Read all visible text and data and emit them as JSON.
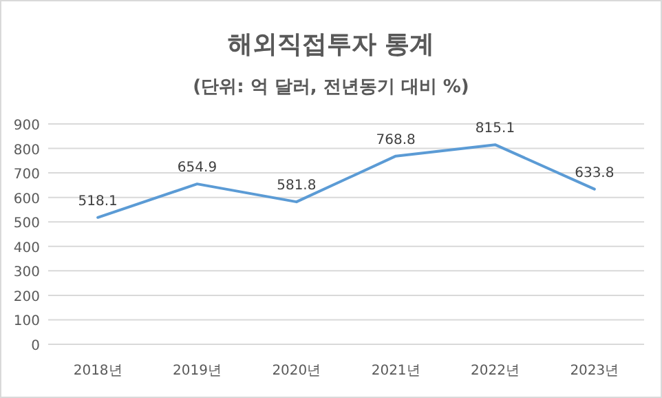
{
  "chart_data": {
    "type": "line",
    "title": "해외직접투자 통계",
    "subtitle": "(단위: 억 달러, 전년동기 대비 %)",
    "categories": [
      "2018년",
      "2019년",
      "2020년",
      "2021년",
      "2022년",
      "2023년"
    ],
    "series": [
      {
        "color": "#5b9bd5",
        "values": [
          518.1,
          654.9,
          581.8,
          768.8,
          815.1,
          633.8
        ]
      }
    ],
    "ylim": [
      0,
      900
    ],
    "yticks": [
      0,
      100,
      200,
      300,
      400,
      500,
      600,
      700,
      800,
      900
    ],
    "grid": "y",
    "data_labels": true,
    "marker": "none",
    "line_style": "solid"
  }
}
